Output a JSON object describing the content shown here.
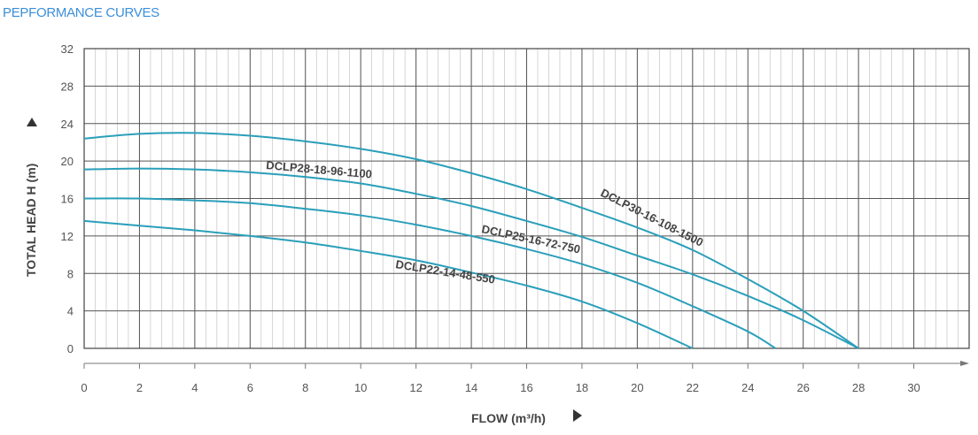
{
  "title": "PEPFORMANCE CURVES",
  "chart_data": {
    "type": "line",
    "title": "",
    "xlabel": "FLOW (m³/h)",
    "ylabel": "TOTAL HEAD H (m)",
    "xlim": [
      0,
      32
    ],
    "ylim": [
      0,
      32
    ],
    "xticks": [
      0,
      2,
      4,
      6,
      8,
      10,
      12,
      14,
      16,
      18,
      20,
      22,
      24,
      26,
      28,
      30
    ],
    "yticks": [
      0,
      4,
      8,
      12,
      16,
      20,
      24,
      28,
      32
    ],
    "grid": true,
    "line_color": "#2a9fba",
    "series": [
      {
        "name": "DCLP30-16-108-1500",
        "x": [
          0,
          2,
          4,
          6,
          8,
          10,
          12,
          14,
          16,
          18,
          20,
          22,
          24,
          26,
          28
        ],
        "y": [
          22.4,
          22.9,
          23.0,
          22.7,
          22.1,
          21.3,
          20.2,
          18.7,
          17.0,
          15.0,
          12.9,
          10.5,
          7.4,
          4.0,
          0
        ]
      },
      {
        "name": "DCLP28-18-96-1100",
        "x": [
          0,
          2,
          4,
          6,
          8,
          10,
          12,
          14,
          16,
          18,
          20,
          22,
          24,
          26,
          28
        ],
        "y": [
          19.1,
          19.2,
          19.1,
          18.8,
          18.3,
          17.6,
          16.5,
          15.2,
          13.6,
          11.9,
          9.9,
          7.9,
          5.6,
          3.0,
          0
        ]
      },
      {
        "name": "DCLP25-16-72-750",
        "x": [
          0,
          2,
          4,
          6,
          8,
          10,
          12,
          14,
          16,
          18,
          20,
          22,
          24,
          25
        ],
        "y": [
          16.0,
          16.0,
          15.8,
          15.5,
          14.9,
          14.2,
          13.2,
          12.0,
          10.6,
          9.0,
          7.0,
          4.5,
          1.8,
          0
        ]
      },
      {
        "name": "DCLP22-14-48-550",
        "x": [
          0,
          2,
          4,
          6,
          8,
          10,
          12,
          14,
          16,
          18,
          20,
          22
        ],
        "y": [
          13.6,
          13.1,
          12.6,
          12.0,
          11.3,
          10.4,
          9.4,
          8.1,
          6.7,
          5.0,
          2.7,
          0
        ]
      }
    ]
  }
}
